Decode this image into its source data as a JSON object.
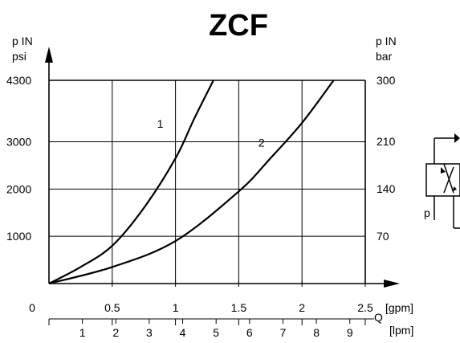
{
  "title": "ZCF",
  "chart_data": {
    "type": "line",
    "title": "ZCF",
    "y_left": {
      "label_top": "p  IN",
      "label_unit": "psi",
      "ticks": [
        1000,
        2000,
        3000,
        4300
      ],
      "tick_labels": [
        "1000",
        "2000",
        "3000",
        "4300"
      ],
      "range": [
        0,
        4300
      ]
    },
    "y_right": {
      "label_top": "p  IN",
      "label_unit": "bar",
      "ticks": [
        70,
        140,
        210,
        300
      ],
      "tick_labels": [
        "70",
        "140",
        "210",
        "300"
      ],
      "range": [
        0,
        300
      ]
    },
    "x_gpm": {
      "unit_label": "[gpm]",
      "ticks": [
        0,
        0.5,
        1,
        1.5,
        2,
        2.5
      ],
      "tick_labels": [
        "0",
        "0.5",
        "1",
        "1.5",
        "2",
        "2.5"
      ],
      "range": [
        0,
        2.5
      ]
    },
    "x_lpm": {
      "unit_label": "[lpm]",
      "ticks": [
        1,
        2,
        3,
        4,
        5,
        6,
        7,
        8,
        9
      ],
      "tick_labels": [
        "1",
        "2",
        "3",
        "4",
        "5",
        "6",
        "7",
        "8",
        "9"
      ]
    },
    "x_axis_symbol": "Q",
    "grid": true,
    "series": [
      {
        "name": "1",
        "x": [
          0,
          0.25,
          0.5,
          0.75,
          1.0,
          1.15,
          1.3
        ],
        "y": [
          0,
          350,
          800,
          1600,
          2650,
          3500,
          4300
        ]
      },
      {
        "name": "2",
        "x": [
          0,
          0.5,
          1.0,
          1.5,
          1.75,
          2.0,
          2.25
        ],
        "y": [
          0,
          350,
          900,
          1950,
          2650,
          3400,
          4300
        ]
      }
    ]
  },
  "symbol": {
    "port_label": "p"
  }
}
